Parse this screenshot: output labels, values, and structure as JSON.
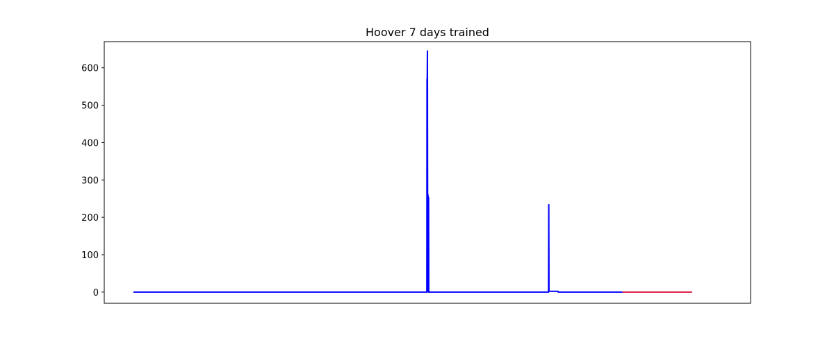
{
  "chart_data": {
    "type": "line",
    "title": "Hoover 7 days trained",
    "xlabel": "",
    "ylabel": "",
    "xlim": [
      0,
      1000
    ],
    "ylim": [
      -30,
      670
    ],
    "x_ticks_visible": false,
    "grid": false,
    "yticks": [
      0,
      100,
      200,
      300,
      400,
      500,
      600
    ],
    "series": [
      {
        "color": "#0000ff",
        "x": [
          0,
          499.0,
          499.3,
          499.6,
          500.0,
          500.3,
          500.6,
          501.0,
          501.3,
          501.6,
          502.0,
          502.3,
          502.6,
          503.0,
          706.0,
          706.4,
          706.8,
          707.3,
          708.0,
          722.0,
          722.5,
          790.0,
          832.0
        ],
        "values": [
          0,
          0,
          570,
          560,
          645,
          290,
          5,
          260,
          2,
          0,
          253,
          2,
          0,
          0,
          0,
          234,
          2,
          2,
          2,
          2,
          0,
          0,
          0
        ]
      },
      {
        "color": "#dc143c",
        "x": [
          832.0,
          950.0
        ],
        "values": [
          0,
          0
        ]
      }
    ]
  }
}
